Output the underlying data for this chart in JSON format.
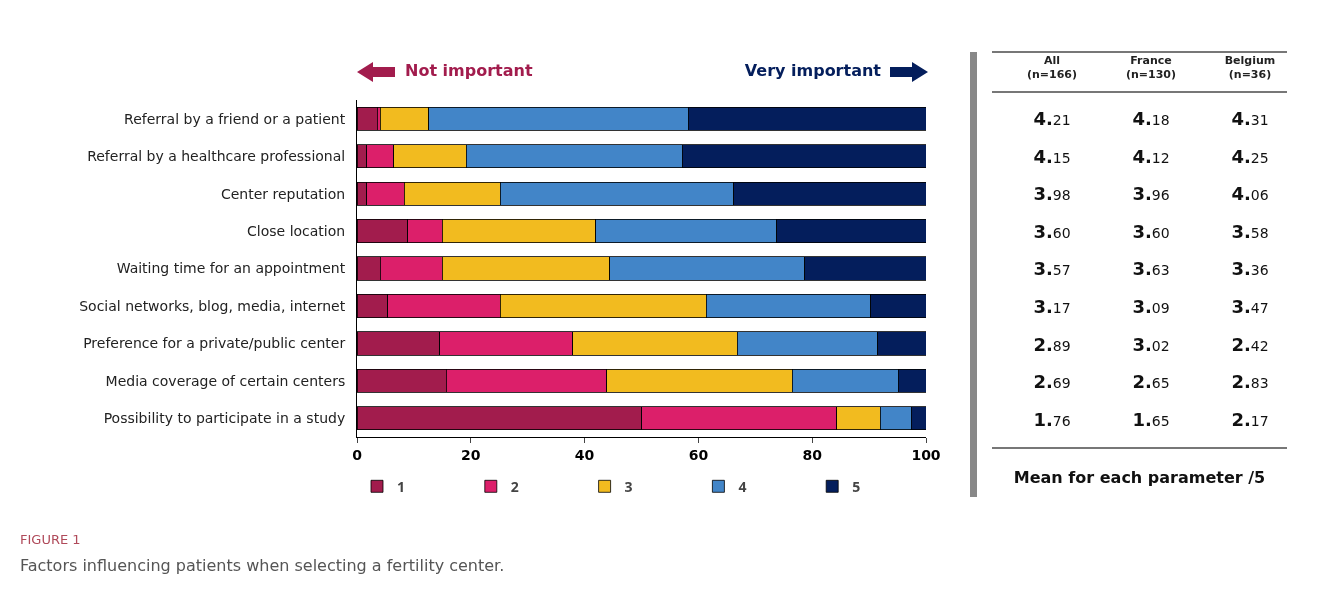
{
  "chart_data": [
    {
      "type": "bar",
      "orientation": "horizontal",
      "stacked": true,
      "categories": [
        "Referral by a friend or a patient",
        "Referral by a healthcare professional",
        "Center reputation",
        "Close location",
        "Waiting time for an appointment",
        "Social networks, blog, media, internet",
        "Preference for a private/public center",
        "Media coverage of certain centers",
        "Possibility to participate in a study"
      ],
      "series": [
        {
          "name": "1",
          "color": "#a21c4d",
          "values": [
            3.6,
            1.7,
            1.7,
            8.9,
            4.1,
            5.4,
            14.5,
            15.7,
            50.0
          ]
        },
        {
          "name": "2",
          "color": "#dc1f6a",
          "values": [
            0.5,
            4.8,
            6.6,
            6.1,
            10.9,
            19.8,
            23.4,
            28.2,
            34.3
          ]
        },
        {
          "name": "3",
          "color": "#f2bb1f",
          "values": [
            8.5,
            12.7,
            16.9,
            27.0,
            29.4,
            36.2,
            28.9,
            32.6,
            7.7
          ]
        },
        {
          "name": "4",
          "color": "#4285c8",
          "values": [
            45.6,
            38.0,
            41.0,
            31.8,
            34.3,
            28.9,
            24.7,
            18.6,
            5.4
          ]
        },
        {
          "name": "5",
          "color": "#041e5c",
          "values": [
            41.8,
            42.8,
            33.8,
            26.2,
            21.3,
            9.7,
            8.5,
            4.9,
            2.6
          ]
        }
      ],
      "xlim": [
        0,
        100
      ],
      "xticks": [
        0,
        20,
        40,
        60,
        80,
        100
      ],
      "grid": false,
      "legend": "bottom",
      "annotations": [
        "Not important",
        "Very important",
        "FIGURE 1",
        "Factors influencing patients when selecting a fertility center."
      ]
    },
    {
      "type": "other",
      "title": "Mean for each parameter /5",
      "categories": [
        "All (n=166)",
        "France (n=130)",
        "Belgium (n=36)"
      ],
      "annotations": [
        "4.21",
        "4.18",
        "4.31",
        "4.15",
        "4.12",
        "4.25",
        "3.98",
        "3.96",
        "4.06",
        "3.60",
        "3.60",
        "3.58",
        "3.57",
        "3.63",
        "3.36",
        "3.17",
        "3.09",
        "3.47",
        "2.89",
        "3.02",
        "2.42",
        "2.69",
        "2.65",
        "2.83",
        "1.76",
        "1.65",
        "2.17"
      ]
    }
  ]
}
